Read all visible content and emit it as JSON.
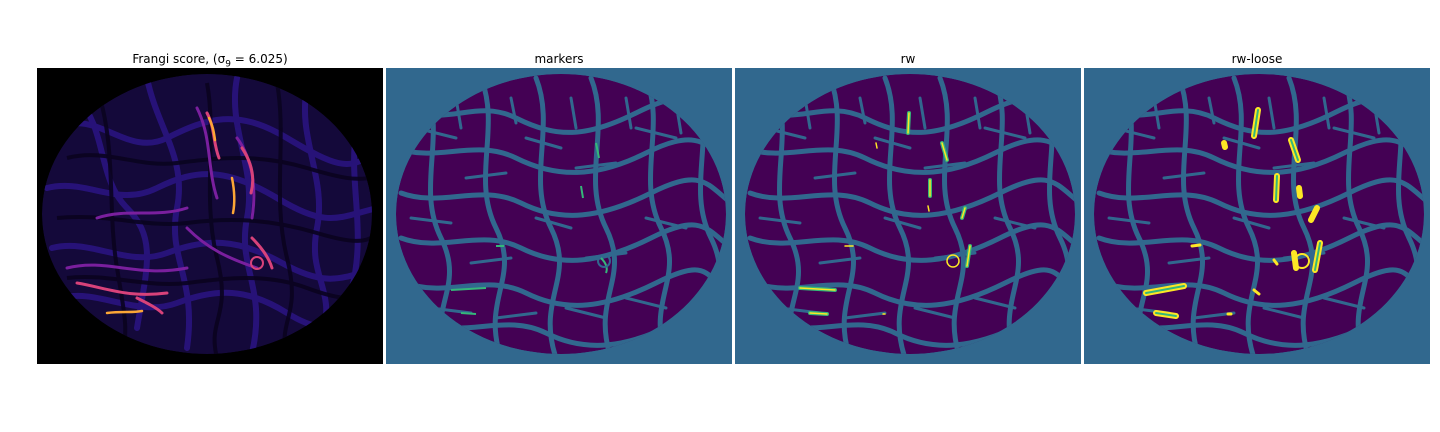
{
  "figure": {
    "panels": [
      {
        "title": "Frangi score, (σ",
        "title_sub": "9",
        "title_tail": " = 6.025)",
        "colormap": "magma",
        "background": "#000000"
      },
      {
        "title": "markers",
        "colormap": "viridis",
        "background": "#31688e"
      },
      {
        "title": "rw",
        "colormap": "viridis",
        "background": "#31688e"
      },
      {
        "title": "rw-loose",
        "colormap": "viridis",
        "background": "#31688e"
      }
    ],
    "colors": {
      "viridis_dark": "#440154",
      "viridis_mid": "#31688e",
      "viridis_green": "#35b779",
      "viridis_yellow": "#fde725",
      "magma_black": "#000000",
      "magma_blue": "#1d1147",
      "magma_purple": "#7a1f9e",
      "magma_pink": "#d8427a",
      "magma_orange": "#fca636"
    }
  }
}
